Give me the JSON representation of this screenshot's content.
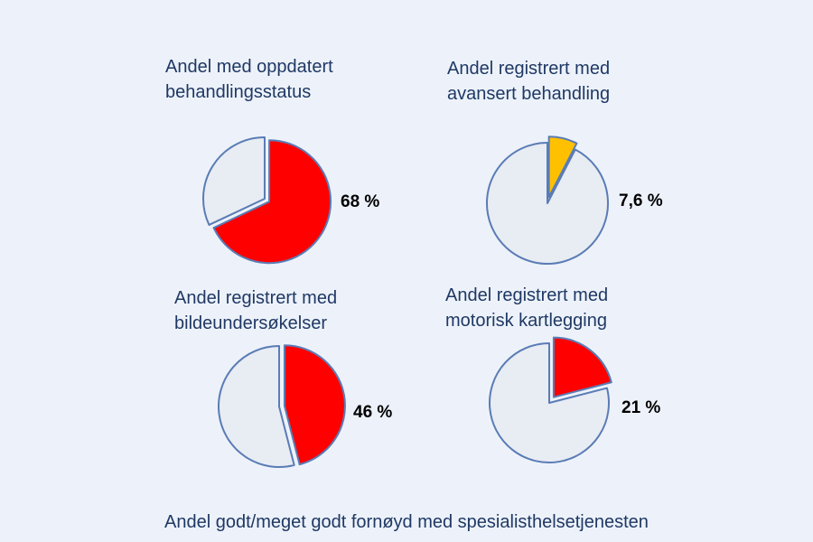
{
  "colors": {
    "background": "#edf2fa",
    "rest": "#e8ecf3",
    "outline": "#5a7cb5",
    "red": "#ff0000",
    "yellow": "#ffc000",
    "title_text": "#1f3864"
  },
  "chart_data": [
    {
      "type": "pie",
      "title_lines": [
        "Andel med oppdatert",
        "behandlingsstatus"
      ],
      "slices": [
        {
          "value": 68,
          "color": "#ff0000",
          "exploded": true
        },
        {
          "value": 32,
          "color": "#e8ecf3",
          "exploded": false
        }
      ],
      "value_label": "68 %"
    },
    {
      "type": "pie",
      "title_lines": [
        "Andel registrert med",
        "avansert behandling"
      ],
      "slices": [
        {
          "value": 7.6,
          "color": "#ffc000",
          "exploded": true
        },
        {
          "value": 92.4,
          "color": "#e8ecf3",
          "exploded": false
        }
      ],
      "value_label": "7,6 %"
    },
    {
      "type": "pie",
      "title_lines": [
        "Andel registrert med",
        "bildeundersøkelser"
      ],
      "slices": [
        {
          "value": 46,
          "color": "#ff0000",
          "exploded": true
        },
        {
          "value": 54,
          "color": "#e8ecf3",
          "exploded": false
        }
      ],
      "value_label": "46 %"
    },
    {
      "type": "pie",
      "title_lines": [
        "Andel registrert med",
        "motorisk kartlegging"
      ],
      "slices": [
        {
          "value": 21,
          "color": "#ff0000",
          "exploded": true
        },
        {
          "value": 79,
          "color": "#e8ecf3",
          "exploded": false
        }
      ],
      "value_label": "21 %"
    }
  ],
  "footer": "Andel godt/meget godt fornøyd med spesialisthelsetjenesten"
}
